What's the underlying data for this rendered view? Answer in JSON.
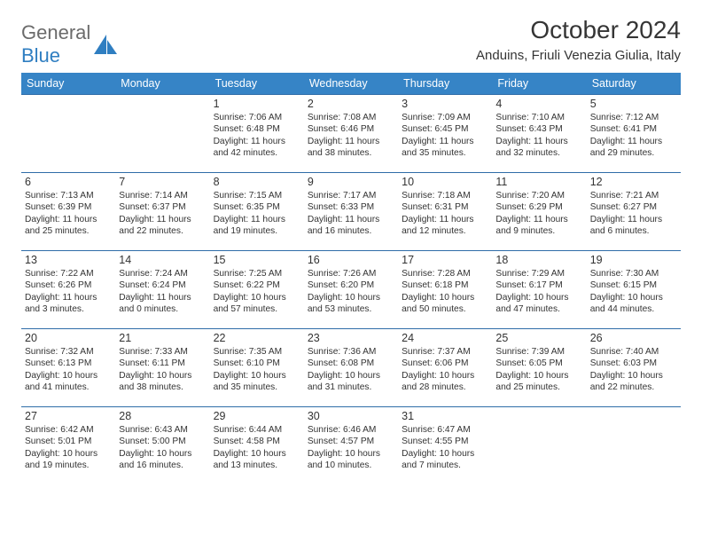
{
  "logo": {
    "word1": "General",
    "word2": "Blue"
  },
  "title": "October 2024",
  "location": "Anduins, Friuli Venezia Giulia, Italy",
  "header_bg": "#3684c6",
  "header_fg": "#ffffff",
  "rule_color": "#2f6da8",
  "text_color": "#333333",
  "day_headers": [
    "Sunday",
    "Monday",
    "Tuesday",
    "Wednesday",
    "Thursday",
    "Friday",
    "Saturday"
  ],
  "weeks": [
    [
      null,
      null,
      {
        "n": "1",
        "sr": "Sunrise: 7:06 AM",
        "ss": "Sunset: 6:48 PM",
        "dl": "Daylight: 11 hours and 42 minutes."
      },
      {
        "n": "2",
        "sr": "Sunrise: 7:08 AM",
        "ss": "Sunset: 6:46 PM",
        "dl": "Daylight: 11 hours and 38 minutes."
      },
      {
        "n": "3",
        "sr": "Sunrise: 7:09 AM",
        "ss": "Sunset: 6:45 PM",
        "dl": "Daylight: 11 hours and 35 minutes."
      },
      {
        "n": "4",
        "sr": "Sunrise: 7:10 AM",
        "ss": "Sunset: 6:43 PM",
        "dl": "Daylight: 11 hours and 32 minutes."
      },
      {
        "n": "5",
        "sr": "Sunrise: 7:12 AM",
        "ss": "Sunset: 6:41 PM",
        "dl": "Daylight: 11 hours and 29 minutes."
      }
    ],
    [
      {
        "n": "6",
        "sr": "Sunrise: 7:13 AM",
        "ss": "Sunset: 6:39 PM",
        "dl": "Daylight: 11 hours and 25 minutes."
      },
      {
        "n": "7",
        "sr": "Sunrise: 7:14 AM",
        "ss": "Sunset: 6:37 PM",
        "dl": "Daylight: 11 hours and 22 minutes."
      },
      {
        "n": "8",
        "sr": "Sunrise: 7:15 AM",
        "ss": "Sunset: 6:35 PM",
        "dl": "Daylight: 11 hours and 19 minutes."
      },
      {
        "n": "9",
        "sr": "Sunrise: 7:17 AM",
        "ss": "Sunset: 6:33 PM",
        "dl": "Daylight: 11 hours and 16 minutes."
      },
      {
        "n": "10",
        "sr": "Sunrise: 7:18 AM",
        "ss": "Sunset: 6:31 PM",
        "dl": "Daylight: 11 hours and 12 minutes."
      },
      {
        "n": "11",
        "sr": "Sunrise: 7:20 AM",
        "ss": "Sunset: 6:29 PM",
        "dl": "Daylight: 11 hours and 9 minutes."
      },
      {
        "n": "12",
        "sr": "Sunrise: 7:21 AM",
        "ss": "Sunset: 6:27 PM",
        "dl": "Daylight: 11 hours and 6 minutes."
      }
    ],
    [
      {
        "n": "13",
        "sr": "Sunrise: 7:22 AM",
        "ss": "Sunset: 6:26 PM",
        "dl": "Daylight: 11 hours and 3 minutes."
      },
      {
        "n": "14",
        "sr": "Sunrise: 7:24 AM",
        "ss": "Sunset: 6:24 PM",
        "dl": "Daylight: 11 hours and 0 minutes."
      },
      {
        "n": "15",
        "sr": "Sunrise: 7:25 AM",
        "ss": "Sunset: 6:22 PM",
        "dl": "Daylight: 10 hours and 57 minutes."
      },
      {
        "n": "16",
        "sr": "Sunrise: 7:26 AM",
        "ss": "Sunset: 6:20 PM",
        "dl": "Daylight: 10 hours and 53 minutes."
      },
      {
        "n": "17",
        "sr": "Sunrise: 7:28 AM",
        "ss": "Sunset: 6:18 PM",
        "dl": "Daylight: 10 hours and 50 minutes."
      },
      {
        "n": "18",
        "sr": "Sunrise: 7:29 AM",
        "ss": "Sunset: 6:17 PM",
        "dl": "Daylight: 10 hours and 47 minutes."
      },
      {
        "n": "19",
        "sr": "Sunrise: 7:30 AM",
        "ss": "Sunset: 6:15 PM",
        "dl": "Daylight: 10 hours and 44 minutes."
      }
    ],
    [
      {
        "n": "20",
        "sr": "Sunrise: 7:32 AM",
        "ss": "Sunset: 6:13 PM",
        "dl": "Daylight: 10 hours and 41 minutes."
      },
      {
        "n": "21",
        "sr": "Sunrise: 7:33 AM",
        "ss": "Sunset: 6:11 PM",
        "dl": "Daylight: 10 hours and 38 minutes."
      },
      {
        "n": "22",
        "sr": "Sunrise: 7:35 AM",
        "ss": "Sunset: 6:10 PM",
        "dl": "Daylight: 10 hours and 35 minutes."
      },
      {
        "n": "23",
        "sr": "Sunrise: 7:36 AM",
        "ss": "Sunset: 6:08 PM",
        "dl": "Daylight: 10 hours and 31 minutes."
      },
      {
        "n": "24",
        "sr": "Sunrise: 7:37 AM",
        "ss": "Sunset: 6:06 PM",
        "dl": "Daylight: 10 hours and 28 minutes."
      },
      {
        "n": "25",
        "sr": "Sunrise: 7:39 AM",
        "ss": "Sunset: 6:05 PM",
        "dl": "Daylight: 10 hours and 25 minutes."
      },
      {
        "n": "26",
        "sr": "Sunrise: 7:40 AM",
        "ss": "Sunset: 6:03 PM",
        "dl": "Daylight: 10 hours and 22 minutes."
      }
    ],
    [
      {
        "n": "27",
        "sr": "Sunrise: 6:42 AM",
        "ss": "Sunset: 5:01 PM",
        "dl": "Daylight: 10 hours and 19 minutes."
      },
      {
        "n": "28",
        "sr": "Sunrise: 6:43 AM",
        "ss": "Sunset: 5:00 PM",
        "dl": "Daylight: 10 hours and 16 minutes."
      },
      {
        "n": "29",
        "sr": "Sunrise: 6:44 AM",
        "ss": "Sunset: 4:58 PM",
        "dl": "Daylight: 10 hours and 13 minutes."
      },
      {
        "n": "30",
        "sr": "Sunrise: 6:46 AM",
        "ss": "Sunset: 4:57 PM",
        "dl": "Daylight: 10 hours and 10 minutes."
      },
      {
        "n": "31",
        "sr": "Sunrise: 6:47 AM",
        "ss": "Sunset: 4:55 PM",
        "dl": "Daylight: 10 hours and 7 minutes."
      },
      null,
      null
    ]
  ]
}
